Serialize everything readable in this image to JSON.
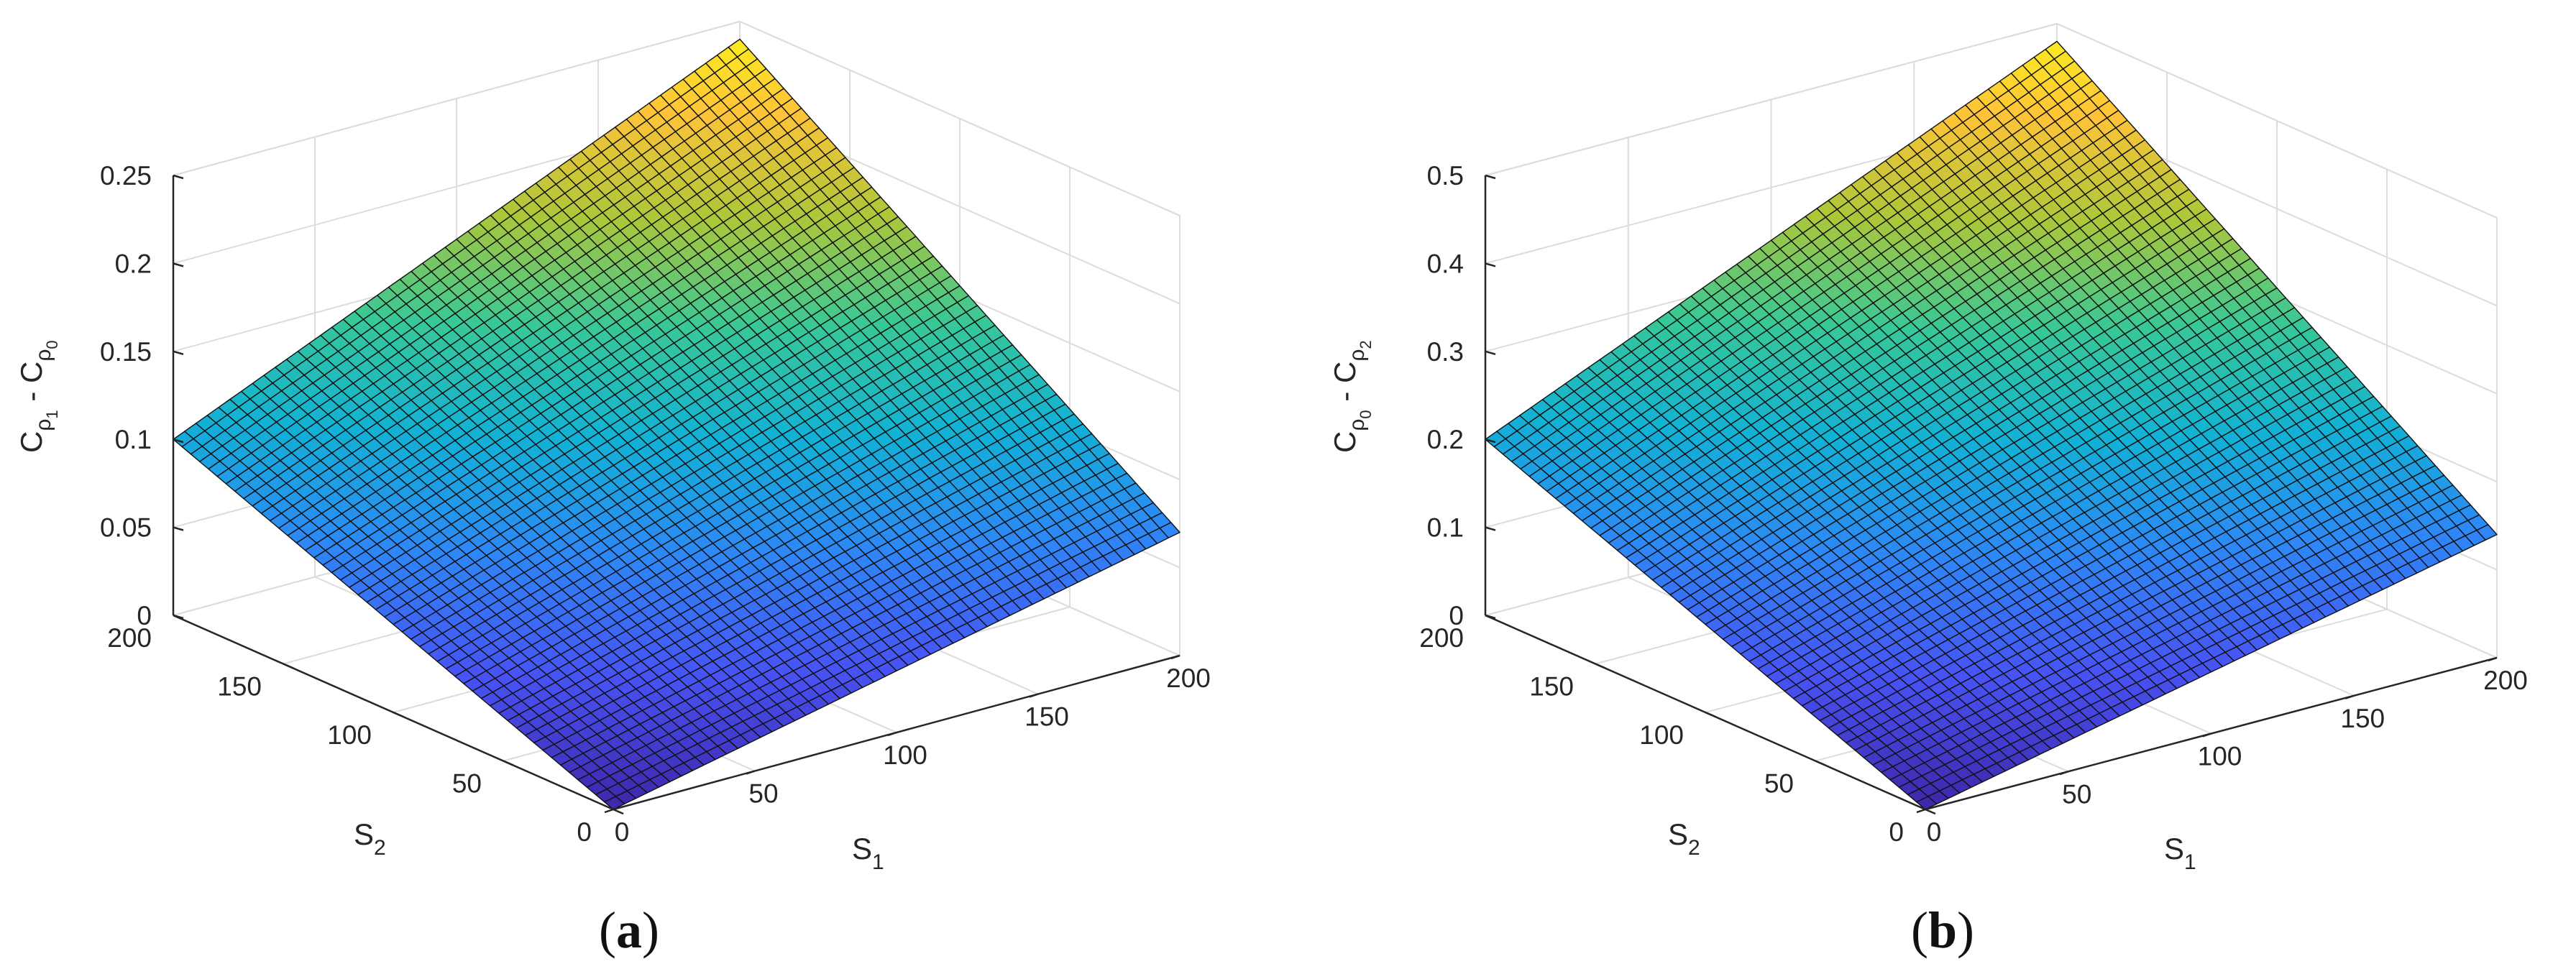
{
  "chart_data": [
    {
      "type": "surface",
      "panel_label": "(a)",
      "panel_letter": "a",
      "xlabel": "S₁",
      "ylabel": "S₂",
      "zlabel_parts": [
        "C",
        "ρ",
        "1",
        " - C",
        "ρ",
        "0"
      ],
      "x_range": [
        0,
        200
      ],
      "y_range": [
        0,
        200
      ],
      "z_range": [
        0,
        0.25
      ],
      "x_ticks": [
        "0",
        "50",
        "100",
        "150",
        "200"
      ],
      "y_ticks": [
        "0",
        "50",
        "100",
        "150",
        "200"
      ],
      "z_ticks": [
        "0",
        "0.05",
        "0.1",
        "0.15",
        "0.2",
        "0.25"
      ],
      "z_tick_values": [
        0,
        0.05,
        0.1,
        0.15,
        0.2,
        0.25
      ],
      "z_corner_values": {
        "s1_0_s2_0": 0.0,
        "s1_200_s2_0": 0.07,
        "s1_0_s2_200": 0.1,
        "s1_200_s2_200": 0.24
      },
      "grid": true,
      "mesh_resolution": 50,
      "colormap": "parula"
    },
    {
      "type": "surface",
      "panel_label": "(b)",
      "panel_letter": "b",
      "xlabel": "S₁",
      "ylabel": "S₂",
      "zlabel_parts": [
        "C",
        "ρ",
        "0",
        " - C",
        "ρ",
        "2"
      ],
      "x_range": [
        0,
        200
      ],
      "y_range": [
        0,
        200
      ],
      "z_range": [
        0,
        0.5
      ],
      "x_ticks": [
        "0",
        "50",
        "100",
        "150",
        "200"
      ],
      "y_ticks": [
        "0",
        "50",
        "100",
        "150",
        "200"
      ],
      "z_ticks": [
        "0",
        "0.1",
        "0.2",
        "0.3",
        "0.4",
        "0.5"
      ],
      "z_tick_values": [
        0,
        0.1,
        0.2,
        0.3,
        0.4,
        0.5
      ],
      "z_corner_values": {
        "s1_0_s2_0": 0.0,
        "s1_200_s2_0": 0.14,
        "s1_0_s2_200": 0.2,
        "s1_200_s2_200": 0.48
      },
      "grid": true,
      "mesh_resolution": 50,
      "colormap": "parula"
    }
  ],
  "colors": {
    "background": "#ffffff",
    "axis": "#262626",
    "grid": "#dcdcdc",
    "edge": "#111111"
  }
}
